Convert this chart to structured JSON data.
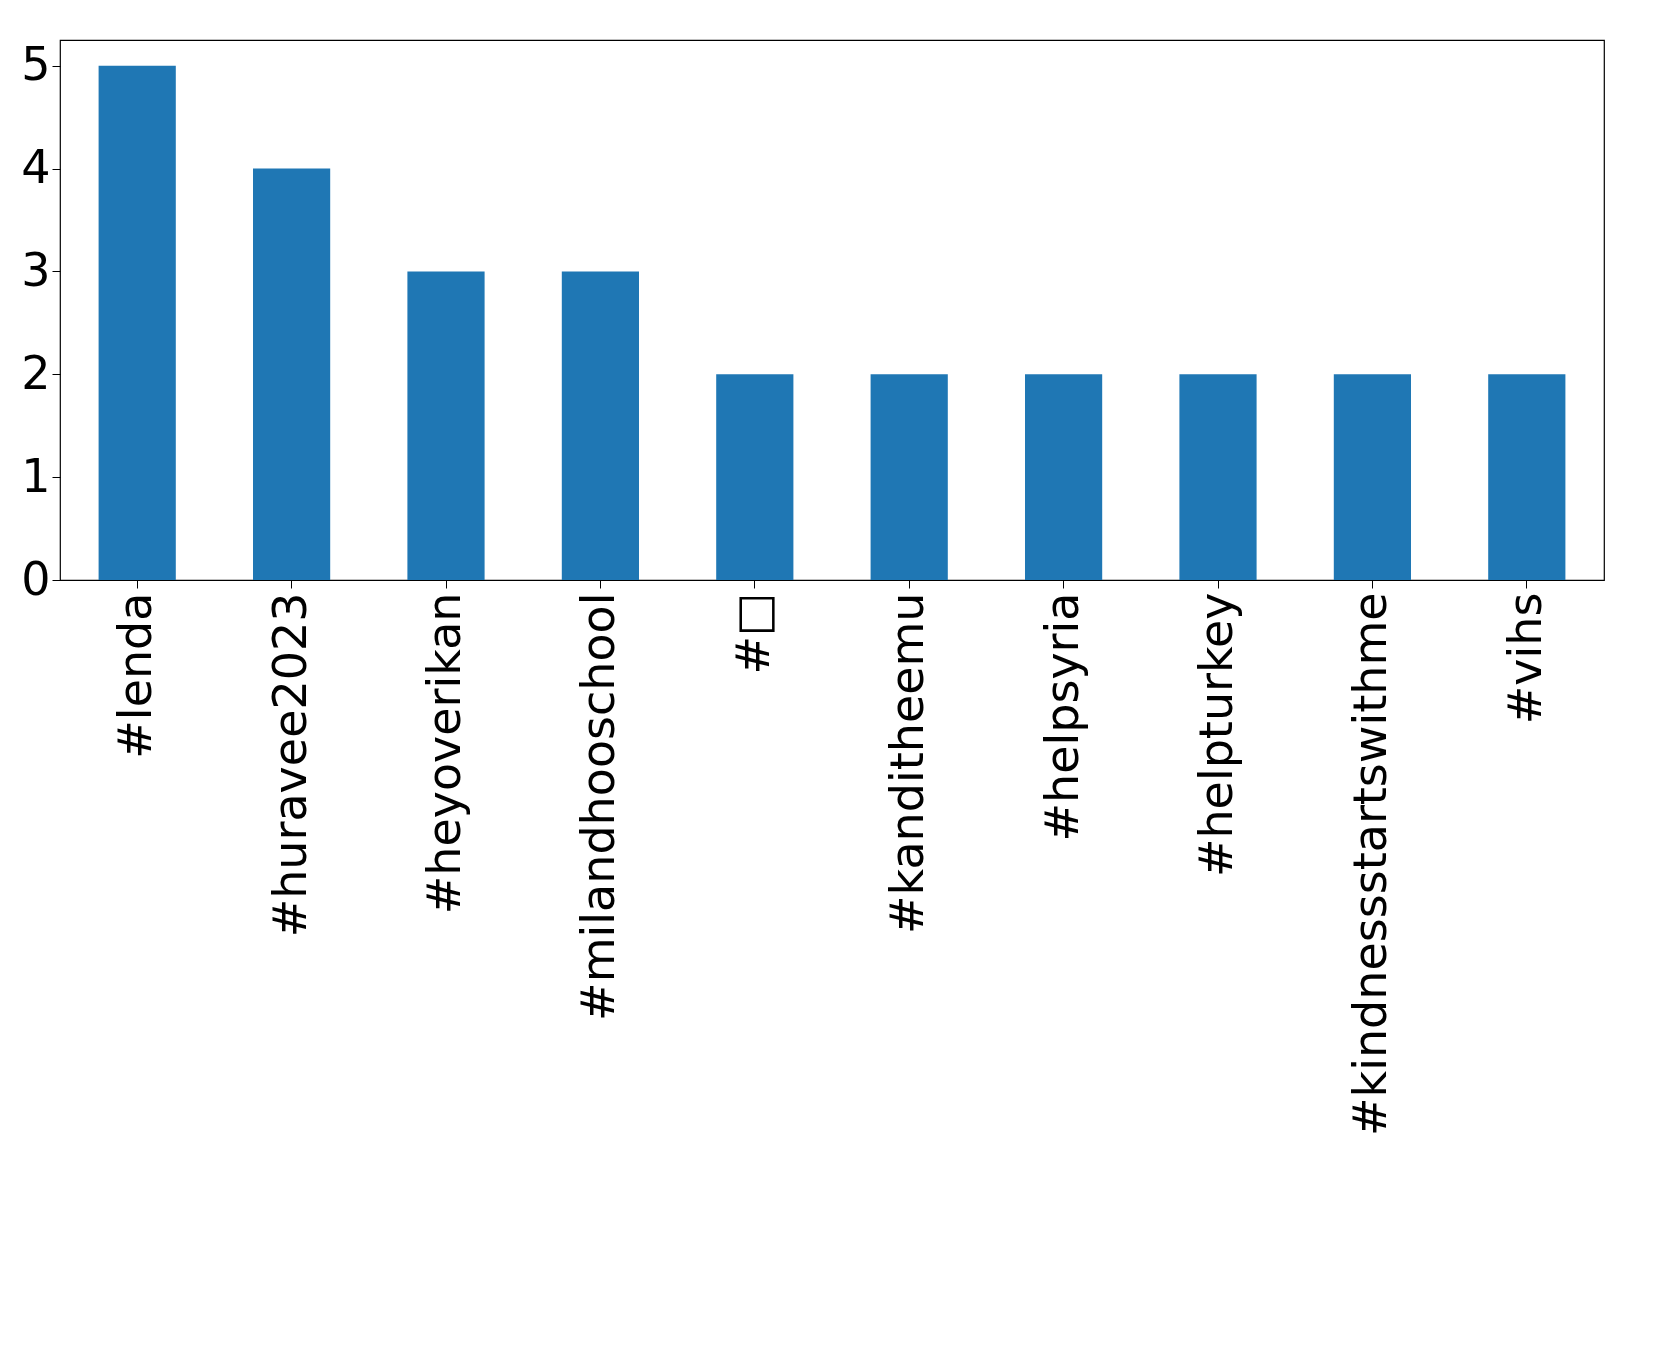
{
  "chart_data": {
    "type": "bar",
    "categories": [
      "#lenda",
      "#huravee2023",
      "#heyoverikan",
      "#milandhooschool",
      "#□",
      "#kanditheemu",
      "#helpsyria",
      "#helpturkey",
      "#kindnessstartswithme",
      "#vihs"
    ],
    "values": [
      5,
      4,
      3,
      3,
      2,
      2,
      2,
      2,
      2,
      2
    ],
    "color": "#1f77b4",
    "ylim": [
      0,
      5.25
    ],
    "yticks": [
      0,
      1,
      2,
      3,
      4,
      5
    ],
    "grid": false
  }
}
